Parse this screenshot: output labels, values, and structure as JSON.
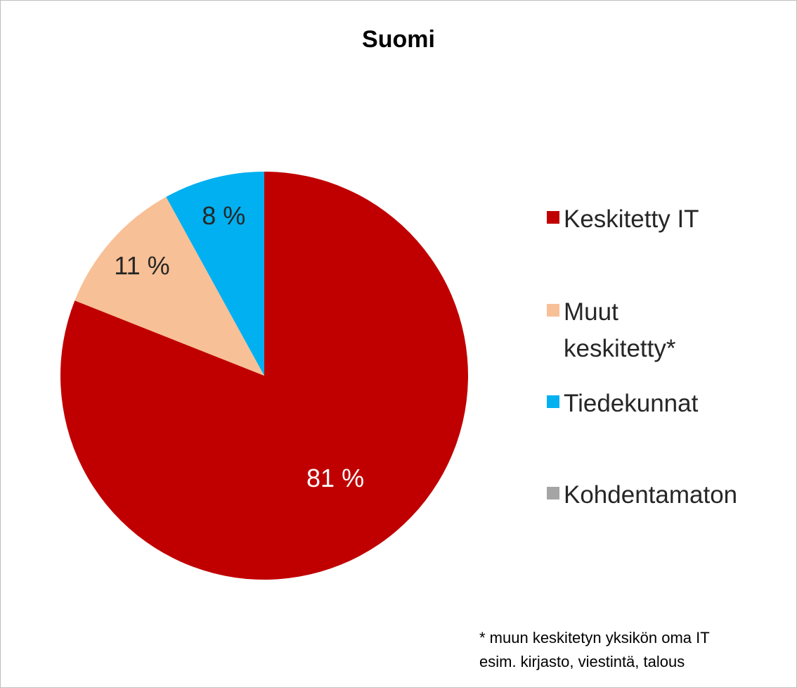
{
  "chart_data": {
    "type": "pie",
    "title": "Suomi",
    "categories": [
      "Keskitetty IT",
      "Muut keskitetty*",
      "Tiedekunnat",
      "Kohdentamaton"
    ],
    "values": [
      81,
      11,
      8,
      0
    ],
    "value_labels": [
      "81 %",
      "11 %",
      "8 %",
      null
    ],
    "colors": [
      "#c00000",
      "#f8c096",
      "#00b0f0",
      "#a5a5a5"
    ],
    "legend": "right",
    "note": [
      "* muun keskitetyn yksikön oma IT",
      "esim. kirjasto, viestintä, talous"
    ]
  }
}
